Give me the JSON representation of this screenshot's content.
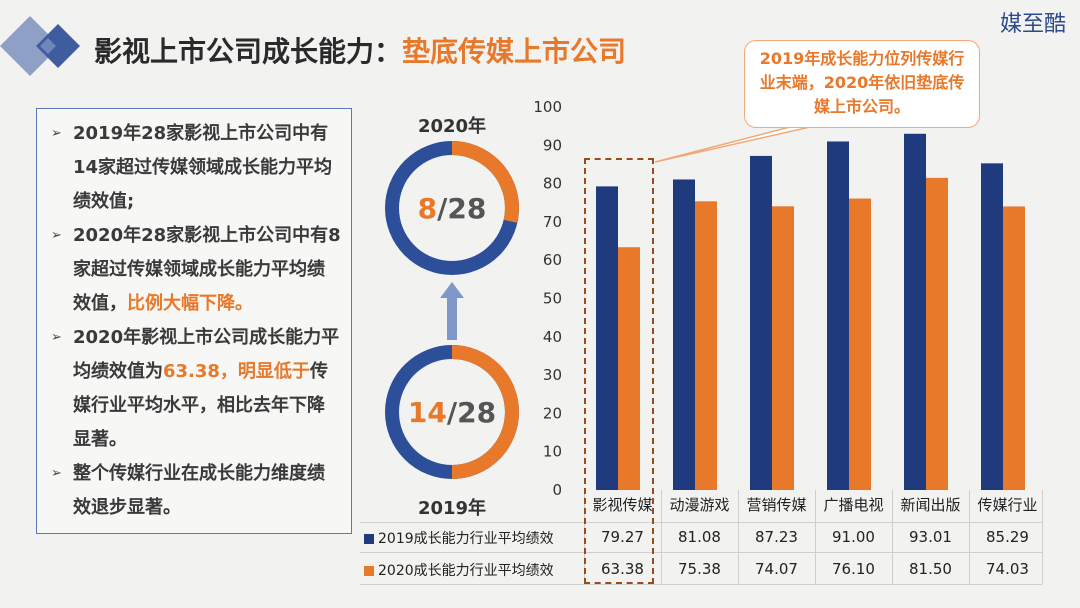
{
  "brand": "媒至酷",
  "title": {
    "main": "影视上市公司成长能力：",
    "highlight": "垫底传媒上市公司"
  },
  "callout": "2019年成长能力位列传媒行业末端，2020年依旧垫底传媒上市公司。",
  "bullets": [
    {
      "text": "2019年28家影视上市公司中有14家超过传媒领域成长能力平均绩效值;",
      "highlight": ""
    },
    {
      "text": "2020年28家影视上市公司中有8家超过传媒领域成长能力平均绩效值，",
      "highlight": "比例大幅下降。"
    },
    {
      "text_before": "2020年影视上市公司成长能力平均绩效值为",
      "highlight": "63.38，明显低于",
      "text_after": "传媒行业平均水平，相比去年下降显著。"
    },
    {
      "text": "整个传媒行业在成长能力维度绩效退步显著。",
      "highlight": ""
    }
  ],
  "donut_2020": {
    "year": "2020年",
    "count": "8",
    "total": "/28",
    "value": 8,
    "of": 28
  },
  "donut_2019": {
    "year": "2019年",
    "count": "14",
    "total": "/28",
    "value": 14,
    "of": 28
  },
  "colors": {
    "series2019": "#1f3b7e",
    "series2020": "#e8782a",
    "ring_blue": "#2d4f9a",
    "ring_orange": "#e8782a"
  },
  "chart_data": {
    "type": "bar",
    "categories": [
      "影视传媒",
      "动漫游戏",
      "营销传媒",
      "广播电视",
      "新闻出版",
      "传媒行业"
    ],
    "series": [
      {
        "name": "2019成长能力行业平均绩效",
        "values": [
          79.27,
          81.08,
          87.23,
          91.0,
          93.01,
          85.29
        ]
      },
      {
        "name": "2020成长能力行业平均绩效",
        "values": [
          63.38,
          75.38,
          74.07,
          76.1,
          81.5,
          74.03
        ]
      }
    ],
    "table": [
      [
        "79.27",
        "81.08",
        "87.23",
        "91.00",
        "93.01",
        "85.29"
      ],
      [
        "63.38",
        "75.38",
        "74.07",
        "76.10",
        "81.50",
        "74.03"
      ]
    ],
    "ylim": [
      0,
      100
    ],
    "yticks": [
      "0",
      "10",
      "20",
      "30",
      "40",
      "50",
      "60",
      "70",
      "80",
      "90",
      "100"
    ],
    "grid": false,
    "legend": "data-table"
  }
}
